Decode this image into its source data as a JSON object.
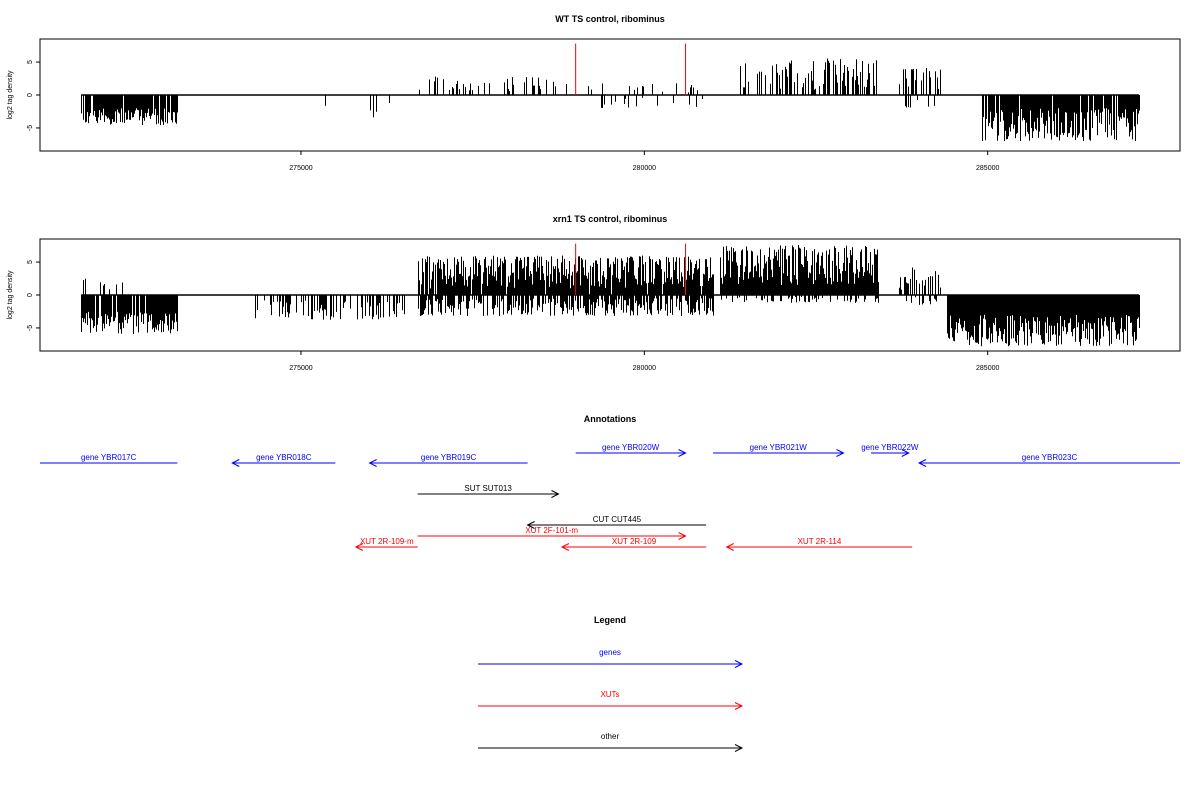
{
  "chart_data": [
    {
      "type": "bar",
      "title": "WT TS control, ribominus",
      "ylabel": "log2 tag density",
      "xlabel": "",
      "xlim": [
        271200,
        287800
      ],
      "ylim": [
        -8.5,
        8.5
      ],
      "x_ticks": [
        275000,
        280000,
        285000
      ],
      "x_tick_labels": [
        "275000",
        "280000",
        "285000"
      ],
      "y_ticks": [
        -5,
        0,
        5
      ],
      "y_tick_labels": [
        "-5",
        "0",
        "5"
      ],
      "markers": {
        "color": "#ff0000",
        "x": [
          279000,
          280600
        ],
        "y": 7.8
      },
      "segments": [
        {
          "start": 271800,
          "end": 273200,
          "sign": -1,
          "min": 2.0,
          "max": 4.6,
          "density": 0.85
        },
        {
          "start": 275300,
          "end": 275400,
          "sign": -1,
          "min": 0.5,
          "max": 1.9,
          "density": 0.15
        },
        {
          "start": 276000,
          "end": 276300,
          "sign": -1,
          "min": 0.8,
          "max": 3.4,
          "density": 0.2
        },
        {
          "start": 276700,
          "end": 278700,
          "sign": 1,
          "min": 0.6,
          "max": 2.8,
          "density": 0.25
        },
        {
          "start": 276800,
          "end": 277000,
          "sign": -1,
          "min": 0.5,
          "max": 2.2,
          "density": 0.1
        },
        {
          "start": 278700,
          "end": 280900,
          "sign": 1,
          "min": 0.4,
          "max": 1.8,
          "density": 0.15
        },
        {
          "start": 279200,
          "end": 280900,
          "sign": -1,
          "min": 0.4,
          "max": 2.2,
          "density": 0.1
        },
        {
          "start": 281400,
          "end": 283400,
          "sign": 1,
          "min": 0.8,
          "max": 5.6,
          "density": 0.55
        },
        {
          "start": 283700,
          "end": 284300,
          "sign": 1,
          "min": 0.8,
          "max": 4.2,
          "density": 0.35
        },
        {
          "start": 283800,
          "end": 284300,
          "sign": -1,
          "min": 0.5,
          "max": 2.0,
          "density": 0.1
        },
        {
          "start": 284900,
          "end": 287200,
          "sign": -1,
          "min": 2.0,
          "max": 7.0,
          "density": 0.9
        }
      ]
    },
    {
      "type": "bar",
      "title": "xrn1 TS control, ribominus",
      "ylabel": "log2 tag density",
      "xlabel": "",
      "xlim": [
        271200,
        287800
      ],
      "ylim": [
        -8.5,
        8.5
      ],
      "x_ticks": [
        275000,
        280000,
        285000
      ],
      "x_tick_labels": [
        "275000",
        "280000",
        "285000"
      ],
      "y_ticks": [
        -5,
        0,
        5
      ],
      "y_tick_labels": [
        "-5",
        "0",
        "5"
      ],
      "markers": {
        "color": "#ff0000",
        "x": [
          279000,
          280600
        ],
        "y": 7.8
      },
      "segments": [
        {
          "start": 271800,
          "end": 273200,
          "sign": -1,
          "min": 2.5,
          "max": 6.0,
          "density": 0.9
        },
        {
          "start": 271800,
          "end": 272500,
          "sign": 1,
          "min": 0.8,
          "max": 2.5,
          "density": 0.15
        },
        {
          "start": 274300,
          "end": 276500,
          "sign": -1,
          "min": 0.8,
          "max": 3.8,
          "density": 0.45
        },
        {
          "start": 276700,
          "end": 281000,
          "sign": 1,
          "min": 1.0,
          "max": 6.0,
          "density": 0.95
        },
        {
          "start": 276700,
          "end": 281000,
          "sign": -1,
          "min": 0.5,
          "max": 3.2,
          "density": 0.7
        },
        {
          "start": 281100,
          "end": 283400,
          "sign": 1,
          "min": 1.5,
          "max": 7.6,
          "density": 1.0
        },
        {
          "start": 281100,
          "end": 283400,
          "sign": -1,
          "min": 0.3,
          "max": 1.2,
          "density": 0.3
        },
        {
          "start": 283700,
          "end": 284300,
          "sign": 1,
          "min": 0.8,
          "max": 4.5,
          "density": 0.6
        },
        {
          "start": 283800,
          "end": 284300,
          "sign": -1,
          "min": 0.3,
          "max": 1.5,
          "density": 0.3
        },
        {
          "start": 284400,
          "end": 287200,
          "sign": -1,
          "min": 3.0,
          "max": 7.8,
          "density": 1.0
        }
      ]
    }
  ],
  "annotations": {
    "title": "Annotations",
    "features": [
      {
        "label": "gene YBR017C",
        "start": 271200,
        "end": 273200,
        "strand": "-",
        "row": 1,
        "color": "#0000ff",
        "arrow": false
      },
      {
        "label": "gene YBR018C",
        "start": 274000,
        "end": 275500,
        "strand": "-",
        "row": 1,
        "color": "#0000ff",
        "arrow": true
      },
      {
        "label": "gene YBR019C",
        "start": 276000,
        "end": 278300,
        "strand": "-",
        "row": 1,
        "color": "#0000ff",
        "arrow": true
      },
      {
        "label": "gene YBR020W",
        "start": 279000,
        "end": 280600,
        "strand": "+",
        "row": 0,
        "color": "#0000ff",
        "arrow": true
      },
      {
        "label": "gene YBR021W",
        "start": 281000,
        "end": 282900,
        "strand": "+",
        "row": 0,
        "color": "#0000ff",
        "arrow": true
      },
      {
        "label": "gene YBR022W",
        "start": 283300,
        "end": 283850,
        "strand": "+",
        "row": 0,
        "color": "#0000ff",
        "arrow": true
      },
      {
        "label": "gene YBR023C",
        "start": 284000,
        "end": 287800,
        "strand": "-",
        "row": 1,
        "color": "#0000ff",
        "arrow": true
      },
      {
        "label": "SUT SUT013",
        "start": 276700,
        "end": 278750,
        "strand": "+",
        "row": 2,
        "color": "#000000",
        "arrow": true
      },
      {
        "label": "CUT CUT445",
        "start": 278300,
        "end": 280900,
        "strand": "-",
        "row": 3,
        "color": "#000000",
        "arrow": true
      },
      {
        "label": "XUT 2F-101-m",
        "start": 276700,
        "end": 280600,
        "strand": "+",
        "row": 4,
        "color": "#ff0000",
        "arrow": true
      },
      {
        "label": "XUT 2R-109-m",
        "start": 275800,
        "end": 276700,
        "strand": "-",
        "row": 5,
        "color": "#ff0000",
        "arrow": true
      },
      {
        "label": "XUT 2R-109",
        "start": 278800,
        "end": 280900,
        "strand": "-",
        "row": 5,
        "color": "#ff0000",
        "arrow": true
      },
      {
        "label": "XUT 2R-114",
        "start": 281200,
        "end": 283900,
        "strand": "-",
        "row": 5,
        "color": "#ff0000",
        "arrow": true
      }
    ]
  },
  "legend": {
    "title": "Legend",
    "items": [
      {
        "label": "genes",
        "color": "#0000ff"
      },
      {
        "label": "XUTs",
        "color": "#ff0000"
      },
      {
        "label": "other",
        "color": "#000000"
      }
    ]
  }
}
